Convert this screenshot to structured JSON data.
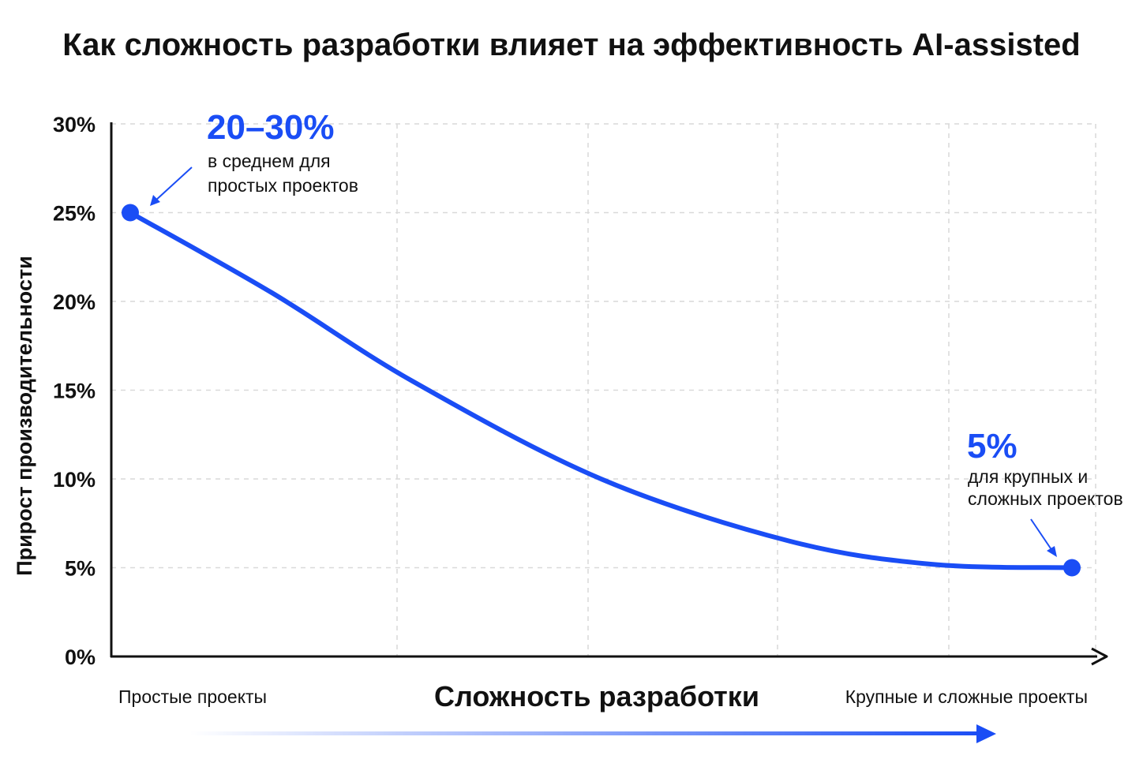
{
  "chart_data": {
    "type": "line",
    "title": "Как сложность разработки влияет на эффективность AI-assisted",
    "xlabel": "Сложность разработки",
    "ylabel": "Прирост производительности",
    "x_categories": [
      "Простые проекты",
      "Крупные и сложные проекты"
    ],
    "yticks": [
      "0%",
      "5%",
      "10%",
      "15%",
      "20%",
      "25%",
      "30%"
    ],
    "ylim": [
      0,
      30
    ],
    "grid": true,
    "series": [
      {
        "x": [
          0,
          0.15,
          0.3,
          0.5,
          0.7,
          0.85,
          1.0
        ],
        "y": [
          25,
          20.5,
          15.5,
          10,
          6.5,
          5.2,
          5
        ]
      }
    ],
    "annotations": [
      {
        "value_label": "20–30%",
        "lines": [
          "в среднем для",
          "простых проектов"
        ]
      },
      {
        "value_label": "5%",
        "lines": [
          "для крупных и",
          "сложных проектов"
        ]
      }
    ],
    "colors": {
      "line": "#1a4df5",
      "annotation": "#1a4df5",
      "axis": "#111111",
      "grid": "#d9d9d9"
    }
  }
}
